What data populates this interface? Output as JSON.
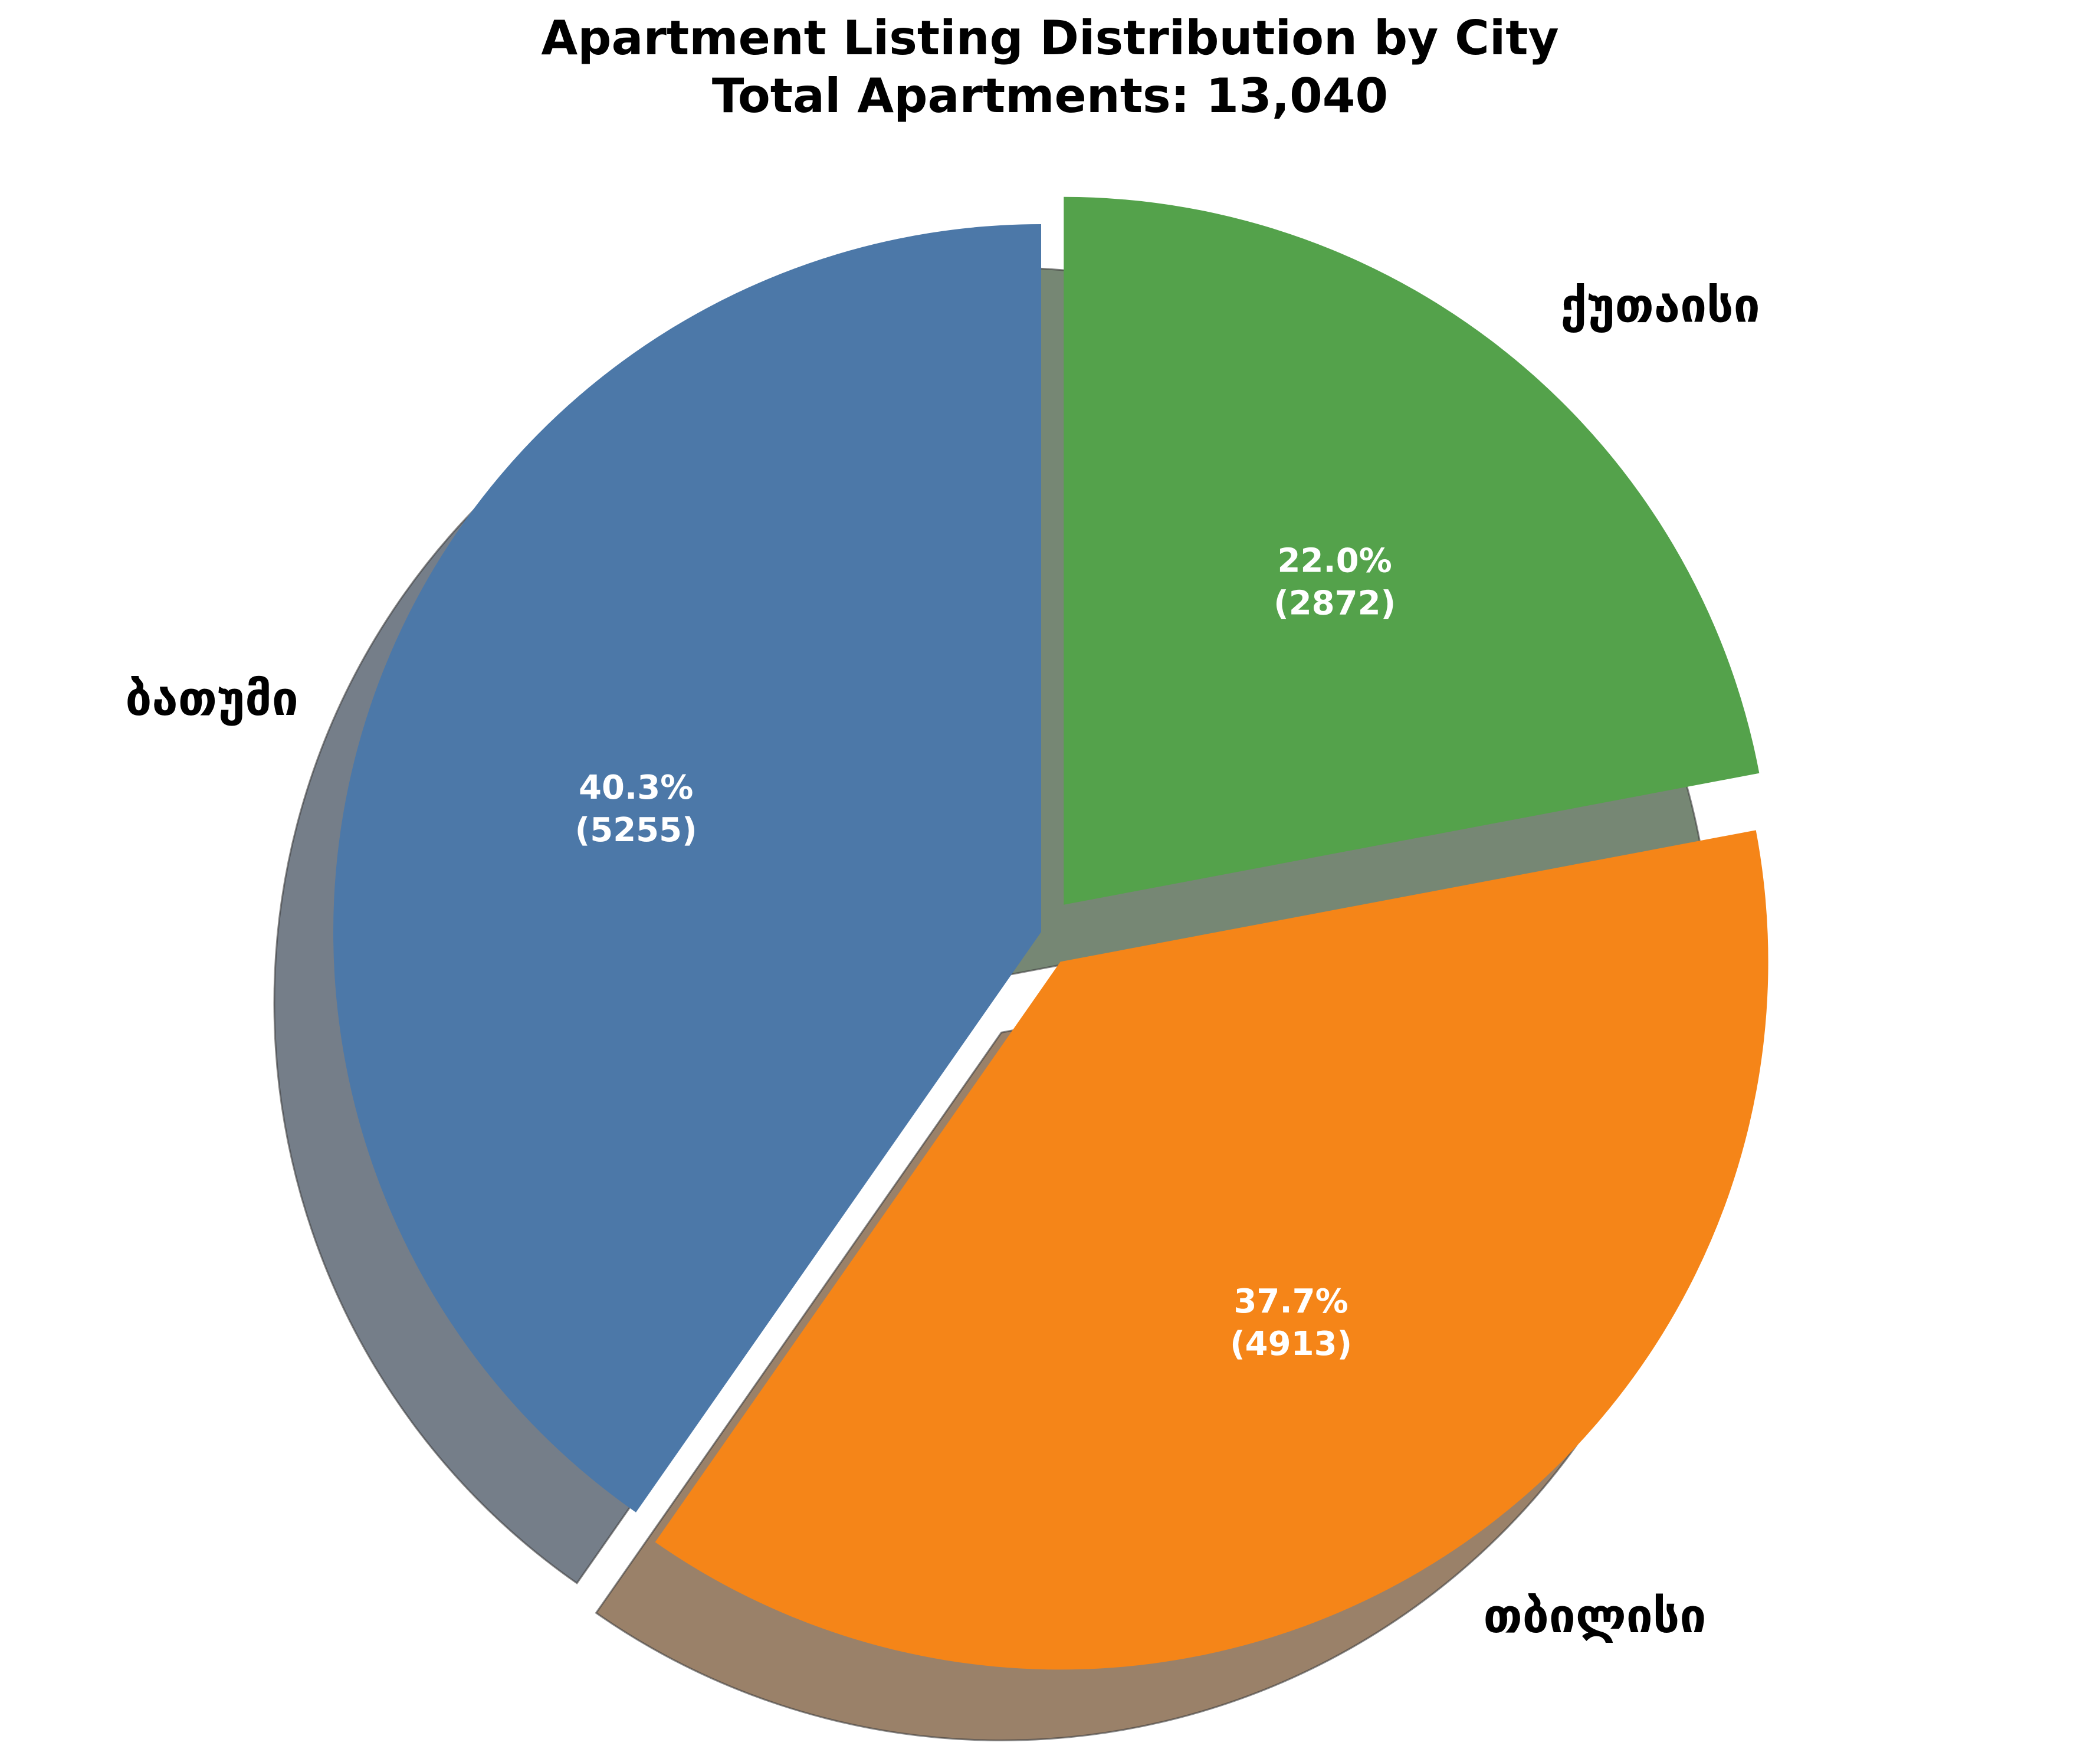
{
  "chart_data": {
    "type": "pie",
    "title": "Apartment Listing Distribution by City",
    "subtitle": "Total Apartments: 13,040",
    "start_angle_deg": 90,
    "direction": "counterclockwise",
    "shadow": true,
    "slices": [
      {
        "label": "ბათუმი",
        "value": 5255,
        "percent_label": "40.3%",
        "count_label": "(5255)",
        "color": "#4c78a8",
        "exploded": false
      },
      {
        "label": "თბილისი",
        "value": 4913,
        "percent_label": "37.7%",
        "count_label": "(4913)",
        "color": "#f58518",
        "exploded": true
      },
      {
        "label": "ქუთაისი",
        "value": 2872,
        "percent_label": "22.0%",
        "count_label": "(2872)",
        "color": "#54a24b",
        "exploded": true
      }
    ]
  }
}
